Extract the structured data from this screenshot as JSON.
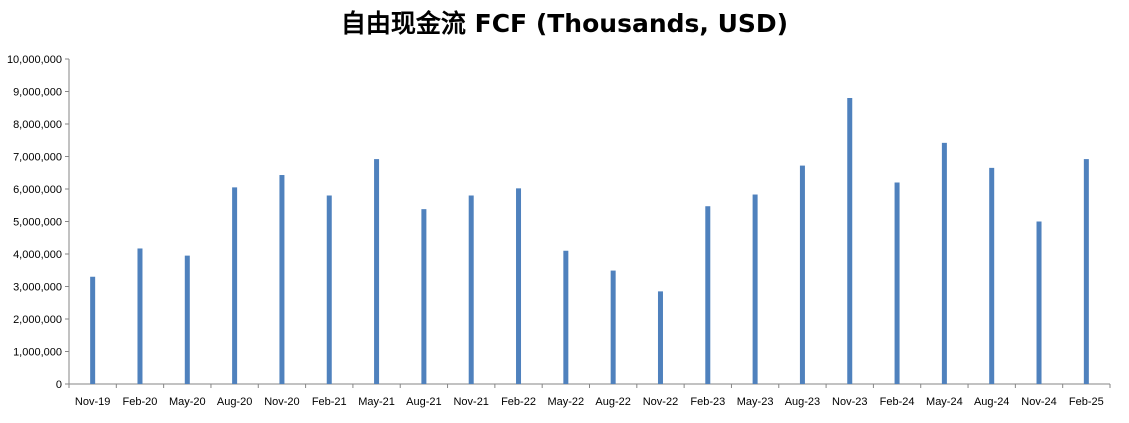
{
  "chart_data": {
    "type": "bar",
    "title": "自由现金流 FCF (Thousands, USD)",
    "categories": [
      "Nov-19",
      "Feb-20",
      "May-20",
      "Aug-20",
      "Nov-20",
      "Feb-21",
      "May-21",
      "Aug-21",
      "Nov-21",
      "Feb-22",
      "May-22",
      "Aug-22",
      "Nov-22",
      "Feb-23",
      "May-23",
      "Aug-23",
      "Nov-23",
      "Feb-24",
      "May-24",
      "Aug-24",
      "Nov-24",
      "Feb-25"
    ],
    "values": [
      3300000,
      4170000,
      3950000,
      6050000,
      6430000,
      5800000,
      6920000,
      5380000,
      5800000,
      6020000,
      4100000,
      3490000,
      2850000,
      5470000,
      5830000,
      6720000,
      8800000,
      6200000,
      7420000,
      6650000,
      5000000,
      6920000
    ],
    "ylim": [
      0,
      10000000
    ],
    "ytick_labels": [
      "0",
      "1,000,000",
      "2,000,000",
      "3,000,000",
      "4,000,000",
      "5,000,000",
      "6,000,000",
      "7,000,000",
      "8,000,000",
      "9,000,000",
      "10,000,000"
    ],
    "grid": false,
    "legend": "none",
    "bar_color": "#4f81bd",
    "xlabel": "",
    "ylabel": ""
  }
}
